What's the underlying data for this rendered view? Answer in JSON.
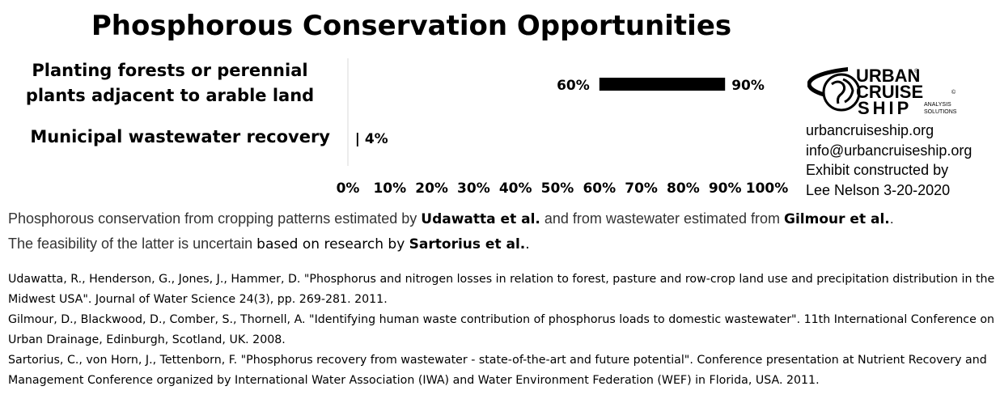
{
  "title": "Phosphorous Conservation Opportunities",
  "chart_data": {
    "type": "bar",
    "orientation": "horizontal",
    "categories": [
      "Planting forests or perennial plants adjacent to arable land",
      "Municipal wastewater recovery"
    ],
    "ranges": [
      {
        "low": 60,
        "high": 90,
        "low_label": "60%",
        "high_label": "90%"
      },
      {
        "low": 4,
        "high": 4,
        "label": "| 4%"
      }
    ],
    "xlim": [
      0,
      100
    ],
    "xticks": [
      "0%",
      "10%",
      "20%",
      "30%",
      "40%",
      "50%",
      "60%",
      "70%",
      "80%",
      "90%",
      "100%"
    ],
    "grid": false,
    "colors": {
      "bar": "#000000",
      "axis": "#d9d9d9"
    }
  },
  "logo": {
    "word1": "URBAN",
    "word2": "CRUISE",
    "word3": "SHIP",
    "tag1": "ANALYSIS",
    "tag2": "SOLUTIONS",
    "reg": "®",
    "copy": "©"
  },
  "info": {
    "website": "urbancruiseship.org",
    "email": "info@urbancruiseship.org",
    "credit1": "Exhibit constructed by",
    "credit2": "Lee Nelson 3-20-2020"
  },
  "note": {
    "p1": "Phosphorous conservation from cropping patterns estimated by ",
    "s1": "Udawatta et al.",
    "p2": " and from wastewater estimated from ",
    "s2": "Gilmour et al.",
    "p3": ".",
    "p4": "The feasibility of the latter is uncertain ",
    "p5": "based on research by ",
    "s3": "Sartorius et al.",
    "p6": "."
  },
  "references": [
    "Udawatta, R., Henderson, G., Jones, J., Hammer, D. \"Phosphorus and nitrogen losses in relation to forest, pasture and row-crop land use and precipitation distribution in the Midwest USA\". Journal of Water Science 24(3), pp. 269-281. 2011.",
    "Gilmour, D., Blackwood, D., Comber, S., Thornell, A. \"Identifying human waste contribution of phosphorus loads to domestic wastewater\". 11th International Conference on Urban Drainage, Edinburgh, Scotland, UK. 2008.",
    "Sartorius, C., von Horn, J., Tettenborn, F. \"Phosphorus recovery from wastewater - state-of-the-art and future potential\". Conference presentation at Nutrient Recovery and Management Conference organized by International Water Association (IWA) and Water Environment Federation (WEF) in Florida, USA. 2011."
  ]
}
